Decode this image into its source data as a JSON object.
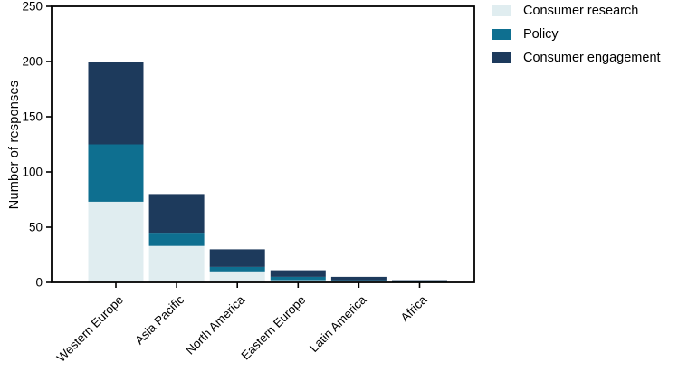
{
  "figure": {
    "background": "#ffffff",
    "axis_color": "#000000",
    "text_color": "#000000"
  },
  "chart_data": {
    "type": "bar",
    "stacked": true,
    "title": "",
    "xlabel": "",
    "ylabel": "Number of responses",
    "ylim": [
      0,
      250
    ],
    "ytick_step": 50,
    "yticks": [
      0,
      50,
      100,
      150,
      200,
      250
    ],
    "grid": false,
    "legend_position": "top-right",
    "categories": [
      "Western Europe",
      "Asia Pacific",
      "North America",
      "Eastern Europe",
      "Latin America",
      "Africa"
    ],
    "series": [
      {
        "name": "Consumer research",
        "color": "#e0edf0",
        "values": [
          73,
          33,
          10,
          2,
          1,
          0
        ]
      },
      {
        "name": "Policy",
        "color": "#0e6f90",
        "values": [
          52,
          12,
          4,
          3,
          1,
          1
        ]
      },
      {
        "name": "Consumer engagement",
        "color": "#1d3a5c",
        "values": [
          75,
          35,
          16,
          6,
          3,
          1
        ]
      }
    ],
    "totals": [
      200,
      80,
      30,
      11,
      5,
      2
    ]
  }
}
